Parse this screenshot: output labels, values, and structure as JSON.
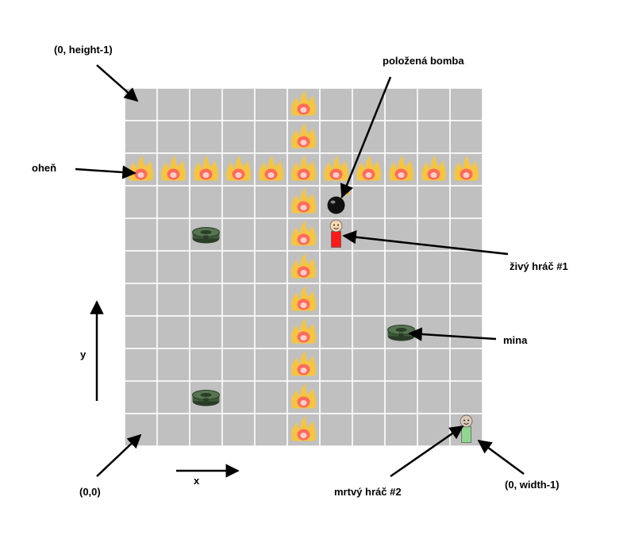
{
  "labels": {
    "top_left": "(0, height-1)",
    "bomb": "položená bomba",
    "fire": "oheň",
    "alive_player": "živý hráč #1",
    "mine": "mina",
    "y_axis": "y",
    "x_axis": "x",
    "origin": "(0,0)",
    "dead_player": "mrtvý hráč #2",
    "bottom_right": "(0, width-1)"
  },
  "grid": {
    "columns": 11,
    "rows": 11,
    "cell_color": "#c0c0c0",
    "line_color": "#ffffff",
    "fire_cells": [
      [
        5,
        0
      ],
      [
        5,
        1
      ],
      [
        0,
        2
      ],
      [
        1,
        2
      ],
      [
        2,
        2
      ],
      [
        3,
        2
      ],
      [
        4,
        2
      ],
      [
        5,
        2
      ],
      [
        6,
        2
      ],
      [
        7,
        2
      ],
      [
        8,
        2
      ],
      [
        9,
        2
      ],
      [
        10,
        2
      ],
      [
        5,
        3
      ],
      [
        5,
        4
      ],
      [
        5,
        5
      ],
      [
        5,
        6
      ],
      [
        5,
        7
      ],
      [
        5,
        8
      ],
      [
        5,
        9
      ],
      [
        5,
        10
      ]
    ],
    "mine_cells": [
      [
        2,
        4
      ],
      [
        8,
        7
      ],
      [
        2,
        9
      ]
    ],
    "bomb_cell": [
      6,
      3
    ],
    "alive_player_cell": [
      6,
      4
    ],
    "dead_player_cell": [
      10,
      10
    ]
  },
  "colors": {
    "alive_player_body": "#ff1a1a",
    "dead_player_body": "#8fd68f",
    "mine": "#3f5a3a",
    "fire_outer": "#f5c542",
    "fire_inner": "#ff6a5e"
  }
}
